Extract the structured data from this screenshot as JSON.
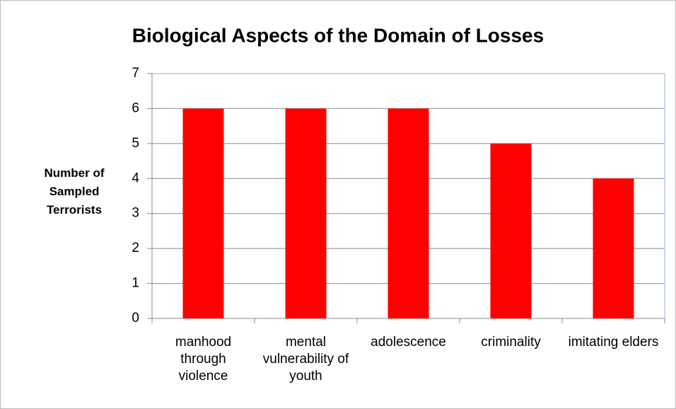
{
  "chart_data": {
    "type": "bar",
    "title": "Biological Aspects of the Domain of Losses",
    "y_label": "Number of Sampled Terrorists",
    "categories": [
      "manhood through violence",
      "mental vulnerability of youth",
      "adolescence",
      "criminality",
      "imitating elders"
    ],
    "values": [
      6,
      6,
      6,
      5,
      4
    ],
    "color": "#ff0000",
    "ylim": [
      0,
      7
    ],
    "yticks": [
      0,
      1,
      2,
      3,
      4,
      5,
      6,
      7
    ],
    "grid": true
  }
}
